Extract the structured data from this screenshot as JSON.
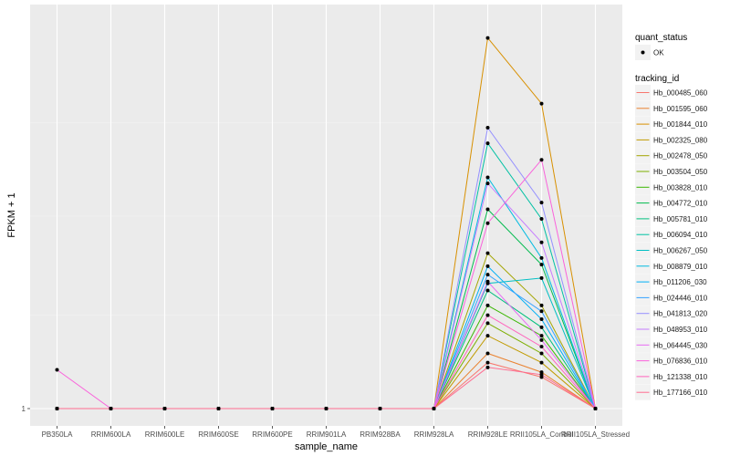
{
  "chart_data": {
    "type": "line",
    "xlabel": "sample_name",
    "ylabel": "FPKM + 1",
    "categories": [
      "PB350LA",
      "RRIM600LA",
      "RRIM600LE",
      "RRIM600SE",
      "RRIM600PE",
      "RRIM901LA",
      "RRIM928BA",
      "RRIM928LA",
      "RRIM928LE",
      "RRII105LA_Control",
      "RRII105LA_Stressed"
    ],
    "y_log_scale": true,
    "ylim": [
      1,
      4
    ],
    "y_ticks": [
      1
    ],
    "y_tick_labels": [
      "1"
    ],
    "grid": true,
    "legend_position": "right",
    "point_legend": {
      "title": "quant_status",
      "entries": [
        "OK"
      ]
    },
    "color_legend_title": "tracking_id",
    "series": [
      {
        "name": "Hb_000485_060",
        "color": "#F8766D",
        "values": [
          1,
          1,
          1,
          1,
          1,
          1,
          1,
          1,
          1.18,
          1.12,
          1
        ]
      },
      {
        "name": "Hb_001595_060",
        "color": "#EA8331",
        "values": [
          1,
          1,
          1,
          1,
          1,
          1,
          1,
          1,
          1.22,
          1.14,
          1
        ]
      },
      {
        "name": "Hb_001844_010",
        "color": "#D89000",
        "values": [
          1,
          1,
          1,
          1,
          1,
          1,
          1,
          1,
          3.8,
          3.0,
          1
        ]
      },
      {
        "name": "Hb_002325_080",
        "color": "#C09B00",
        "values": [
          1,
          1,
          1,
          1,
          1,
          1,
          1,
          1,
          1.3,
          1.18,
          1
        ]
      },
      {
        "name": "Hb_002478_050",
        "color": "#A3A500",
        "values": [
          1,
          1,
          1,
          1,
          1,
          1,
          1,
          1,
          1.75,
          1.45,
          1
        ]
      },
      {
        "name": "Hb_003504_050",
        "color": "#7CAE00",
        "values": [
          1,
          1,
          1,
          1,
          1,
          1,
          1,
          1,
          1.36,
          1.22,
          1
        ]
      },
      {
        "name": "Hb_003828_010",
        "color": "#39B600",
        "values": [
          1,
          1,
          1,
          1,
          1,
          1,
          1,
          1,
          1.45,
          1.3,
          1
        ]
      },
      {
        "name": "Hb_004772_010",
        "color": "#00BB4E",
        "values": [
          1,
          1,
          1,
          1,
          1,
          1,
          1,
          1,
          2.05,
          1.68,
          1
        ]
      },
      {
        "name": "Hb_005781_010",
        "color": "#00BF7D",
        "values": [
          1,
          1,
          1,
          1,
          1,
          1,
          1,
          1,
          1.53,
          1.34,
          1
        ]
      },
      {
        "name": "Hb_006094_010",
        "color": "#00C1A3",
        "values": [
          1,
          1,
          1,
          1,
          1,
          1,
          1,
          1,
          2.6,
          1.98,
          1
        ]
      },
      {
        "name": "Hb_006267_050",
        "color": "#00BFC4",
        "values": [
          1,
          1,
          1,
          1,
          1,
          1,
          1,
          1,
          1.57,
          1.6,
          1
        ]
      },
      {
        "name": "Hb_008879_010",
        "color": "#00BAE0",
        "values": [
          1,
          1,
          1,
          1,
          1,
          1,
          1,
          1,
          2.3,
          1.72,
          1
        ]
      },
      {
        "name": "Hb_011206_030",
        "color": "#00B0F6",
        "values": [
          1,
          1,
          1,
          1,
          1,
          1,
          1,
          1,
          1.67,
          1.38,
          1
        ]
      },
      {
        "name": "Hb_024446_010",
        "color": "#35A2FF",
        "values": [
          1,
          1,
          1,
          1,
          1,
          1,
          1,
          1,
          1.62,
          1.42,
          1
        ]
      },
      {
        "name": "Hb_041813_020",
        "color": "#9590FF",
        "values": [
          1,
          1,
          1,
          1,
          1,
          1,
          1,
          1,
          2.75,
          2.1,
          1
        ]
      },
      {
        "name": "Hb_048953_010",
        "color": "#C77CFF",
        "values": [
          1,
          1,
          1,
          1,
          1,
          1,
          1,
          1,
          2.25,
          1.82,
          1
        ]
      },
      {
        "name": "Hb_064445_030",
        "color": "#E76BF3",
        "values": [
          1,
          1,
          1,
          1,
          1,
          1,
          1,
          1,
          1.58,
          1.28,
          1
        ]
      },
      {
        "name": "Hb_076836_010",
        "color": "#FA62DB",
        "values": [
          1.15,
          1,
          1,
          1,
          1,
          1,
          1,
          1,
          1.95,
          2.45,
          1
        ]
      },
      {
        "name": "Hb_121338_010",
        "color": "#FF62BC",
        "values": [
          1,
          1,
          1,
          1,
          1,
          1,
          1,
          1,
          1.4,
          1.25,
          1
        ]
      },
      {
        "name": "Hb_177166_010",
        "color": "#FF6C91",
        "values": [
          1,
          1,
          1,
          1,
          1,
          1,
          1,
          1,
          1.16,
          1.13,
          1
        ]
      }
    ]
  }
}
